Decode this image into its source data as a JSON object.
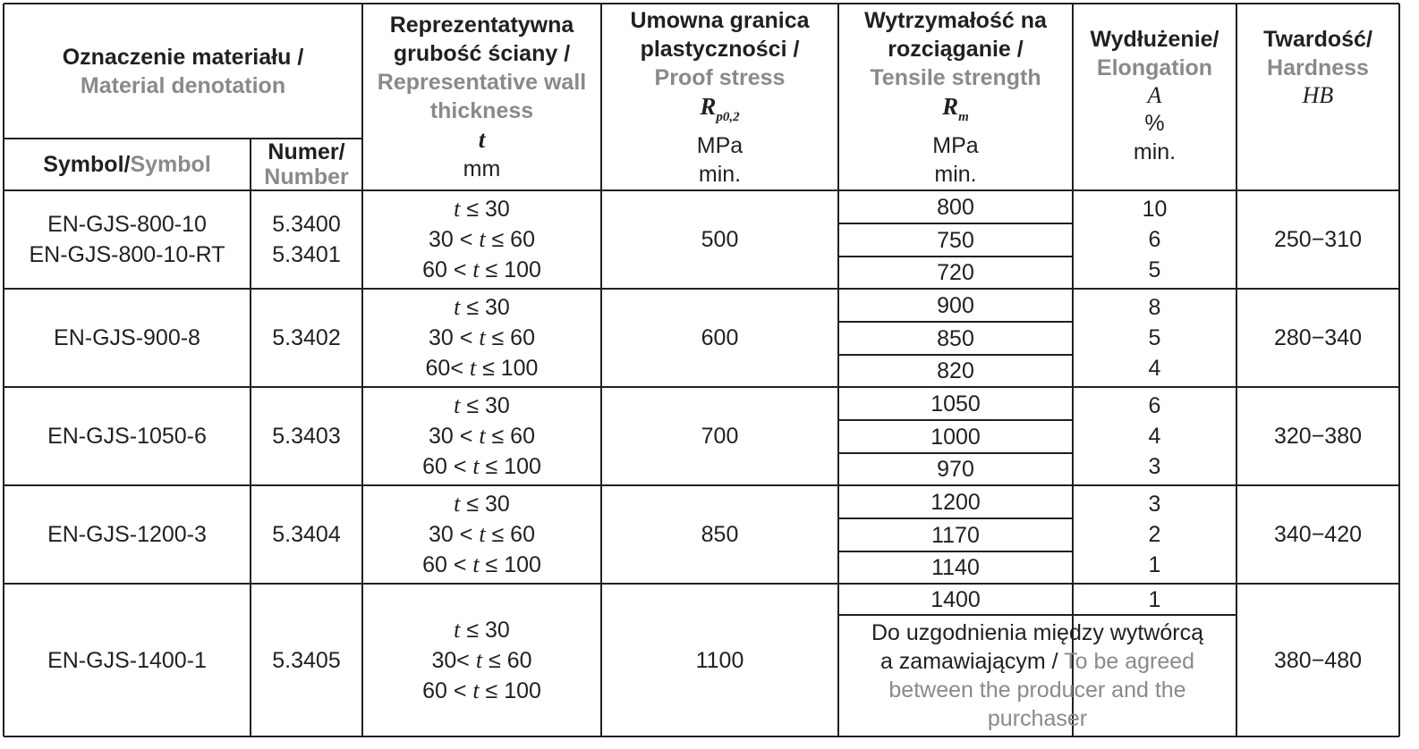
{
  "header": {
    "material": {
      "pl": "Oznaczenie materiału /",
      "en": "Material denotation"
    },
    "symbol": {
      "pl": "Symbol/",
      "en": "Symbol"
    },
    "number": {
      "pl": "Numer/",
      "en": "Number"
    },
    "thickness": {
      "pl1": "Reprezentatywna",
      "pl2": "grubość ściany /",
      "en1": "Representative wall",
      "en2": "thickness",
      "sym": "t",
      "unit": "mm"
    },
    "proof": {
      "pl1": "Umowna granica",
      "pl2": "plastyczności /",
      "en": "Proof stress",
      "sym": "R",
      "sub": "p0,2",
      "unit": "MPa",
      "min": "min."
    },
    "tensile": {
      "pl1": "Wytrzymałość na",
      "pl2": "rozciąganie /",
      "en": "Tensile strength",
      "sym": "R",
      "sub": "m",
      "unit": "MPa",
      "min": "min."
    },
    "elong": {
      "pl": "Wydłużenie/",
      "en": "Elongation",
      "sym": "A",
      "unit": "%",
      "min": "min."
    },
    "hard": {
      "pl": "Twardość/",
      "en": "Hardness",
      "sym": "HB"
    }
  },
  "rows": [
    {
      "symbols": [
        "EN-GJS-800-10",
        "EN-GJS-800-10-RT"
      ],
      "numbers": [
        "5.3400",
        "5.3401"
      ],
      "t": [
        "t ≤ 30",
        "30 < t ≤ 60",
        "60 < t ≤ 100"
      ],
      "rp": "500",
      "rm": [
        "800",
        "750",
        "720"
      ],
      "a": [
        "10",
        "6",
        "5"
      ],
      "hb": "250−310"
    },
    {
      "symbols": [
        "EN-GJS-900-8"
      ],
      "numbers": [
        "5.3402"
      ],
      "t": [
        "t ≤ 30",
        "30 < t ≤ 60",
        "60< t ≤ 100"
      ],
      "rp": "600",
      "rm": [
        "900",
        "850",
        "820"
      ],
      "a": [
        "8",
        "5",
        "4"
      ],
      "hb": "280−340"
    },
    {
      "symbols": [
        "EN-GJS-1050-6"
      ],
      "numbers": [
        "5.3403"
      ],
      "t": [
        "t ≤ 30",
        "30 < t ≤ 60",
        "60 < t ≤ 100"
      ],
      "rp": "700",
      "rm": [
        "1050",
        "1000",
        "970"
      ],
      "a": [
        "6",
        "4",
        "3"
      ],
      "hb": "320−380"
    },
    {
      "symbols": [
        "EN-GJS-1200-3"
      ],
      "numbers": [
        "5.3404"
      ],
      "t": [
        "t ≤ 30",
        "30 < t ≤ 60",
        "60 < t ≤ 100"
      ],
      "rp": "850",
      "rm": [
        "1200",
        "1170",
        "1140"
      ],
      "a": [
        "3",
        "2",
        "1"
      ],
      "hb": "340−420"
    },
    {
      "symbols": [
        "EN-GJS-1400-1"
      ],
      "numbers": [
        "5.3405"
      ],
      "t": [
        "t ≤ 30",
        "30< t ≤ 60",
        "60 < t ≤ 100"
      ],
      "rp": "1100",
      "rm": [
        "1400"
      ],
      "a": [
        "1"
      ],
      "hb": "380−480",
      "note": {
        "pl1": "Do uzgodnienia między wytwórcą",
        "pl2": "a zamawiającym / ",
        "en1": "To be agreed",
        "en2": "between the producer and the",
        "en3": "purchaser"
      }
    }
  ],
  "colors": {
    "text": "#231f20",
    "secondary": "#8a8a8a",
    "border": "#231f20"
  }
}
